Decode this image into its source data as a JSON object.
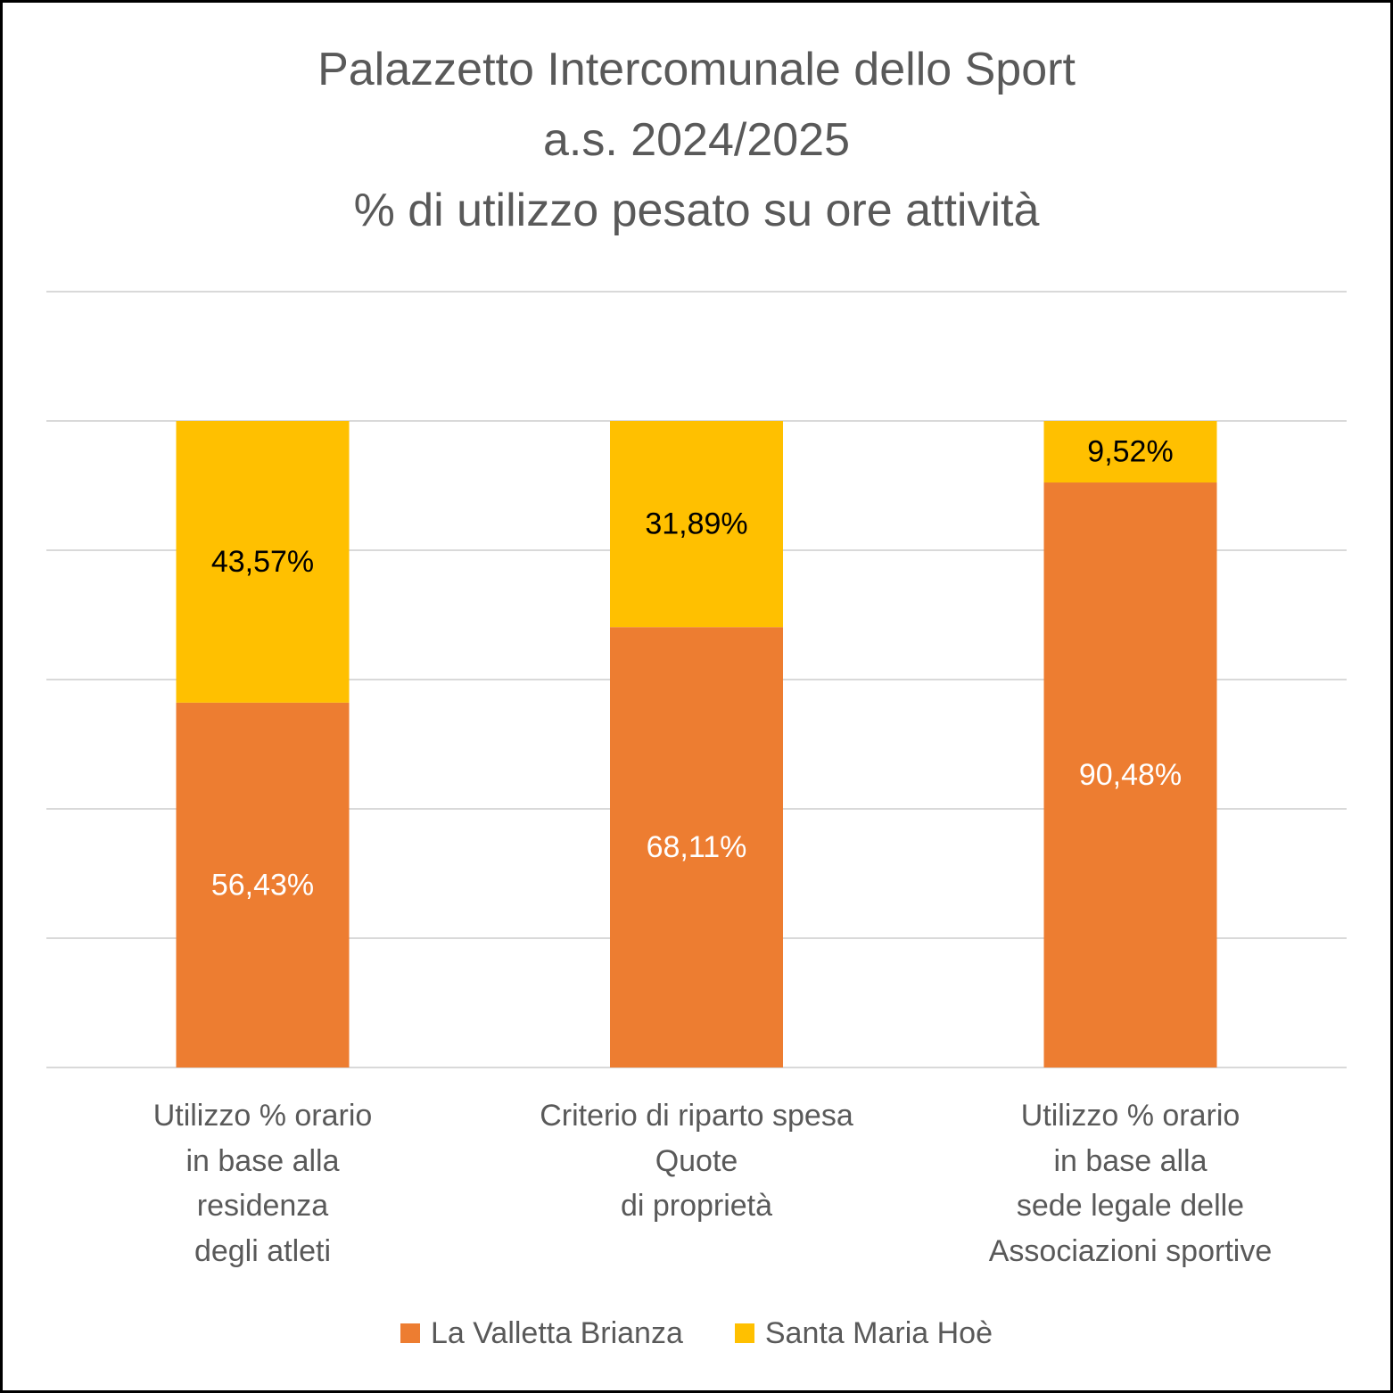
{
  "chart_data": {
    "type": "bar",
    "stacked": true,
    "title": "Palazzetto Intercomunale dello Sport a.s. 2024/2025 % di utilizzo pesato su ore attività",
    "title_lines": [
      "Palazzetto Intercomunale dello Sport",
      "a.s. 2024/2025",
      "% di utilizzo pesato su ore attività"
    ],
    "xlabel": "",
    "ylabel": "",
    "ylim": [
      0,
      100
    ],
    "y_gridline_step": 20,
    "y_axis_tick_labels_shown": false,
    "grid": true,
    "legend_position": "bottom",
    "categories": [
      "Utilizzo % orario in base alla residenza degli atleti",
      "Criterio di riparto spesa Quote di proprietà",
      "Utilizzo % orario in base alla sede legale delle Associazioni sportive"
    ],
    "category_label_lines": [
      [
        "Utilizzo % orario",
        "in base alla",
        "residenza",
        "degli atleti"
      ],
      [
        "Criterio di riparto spesa",
        "Quote",
        "di proprietà"
      ],
      [
        "Utilizzo % orario",
        "in base alla",
        "sede legale delle",
        "Associazioni sportive"
      ]
    ],
    "series": [
      {
        "name": "La Valletta Brianza",
        "color": "#ED7D31",
        "label_color": "#FFFFFF",
        "values": [
          56.43,
          68.11,
          90.48
        ],
        "labels": [
          "56,43%",
          "68,11%",
          "90,48%"
        ]
      },
      {
        "name": "Santa Maria Hoè",
        "color": "#FFC000",
        "label_color": "#000000",
        "values": [
          43.57,
          31.89,
          9.52
        ],
        "labels": [
          "43,57%",
          "31,89%",
          "9,52%"
        ]
      }
    ]
  },
  "colors": {
    "title_text": "#595959",
    "gridline": "#D9D9D9",
    "frame_border": "#000000"
  }
}
